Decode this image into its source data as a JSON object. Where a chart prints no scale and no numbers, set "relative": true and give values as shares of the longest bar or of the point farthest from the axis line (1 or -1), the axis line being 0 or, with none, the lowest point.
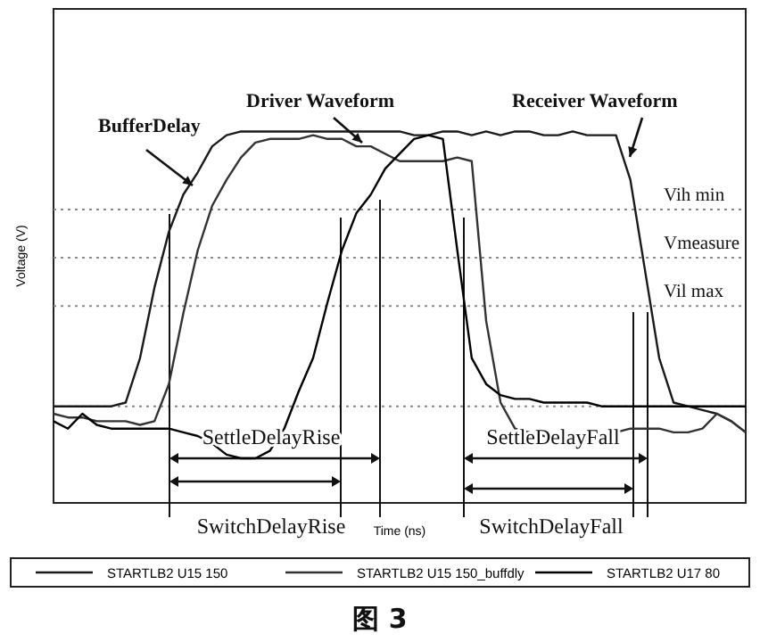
{
  "chart_data": {
    "type": "line",
    "relative": true,
    "xlabel": "Time (ns)",
    "ylabel": "Voltage (V)",
    "categories": [
      null,
      null,
      null,
      null,
      null,
      null,
      null,
      null,
      null,
      null,
      null,
      null,
      null,
      null,
      null,
      null,
      null,
      null,
      null,
      null,
      null,
      null,
      null,
      null,
      null,
      null,
      null,
      null,
      null,
      null,
      null,
      null,
      null,
      null,
      null,
      null,
      null,
      null,
      null,
      null,
      null,
      null,
      null,
      null,
      null,
      null,
      null,
      null,
      null
    ],
    "series": [
      {
        "name": "STARTLB2 U15 150",
        "color": "#1a1a1a",
        "values": [
          0.26,
          0.26,
          0.26,
          0.26,
          0.26,
          0.27,
          0.39,
          0.58,
          0.73,
          0.83,
          0.89,
          0.96,
          0.99,
          1,
          1,
          1,
          1,
          1,
          1,
          1,
          1,
          1,
          1,
          1,
          1,
          0.99,
          0.99,
          1,
          1,
          0.99,
          1,
          0.99,
          1,
          1,
          0.99,
          0.99,
          1,
          0.99,
          0.99,
          0.99,
          0.87,
          0.63,
          0.39,
          0.27,
          0.26,
          0.25,
          0.24,
          0.22,
          0.19
        ]
      },
      {
        "name": "STARTLB2 U15 150_buffdly",
        "color": "#333333",
        "values": [
          0.24,
          0.23,
          0.23,
          0.22,
          0.22,
          0.22,
          0.21,
          0.22,
          0.32,
          0.51,
          0.68,
          0.8,
          0.87,
          0.93,
          0.97,
          0.98,
          0.98,
          0.98,
          0.99,
          0.98,
          0.98,
          0.96,
          0.96,
          0.94,
          0.92,
          0.92,
          0.92,
          0.92,
          0.93,
          0.92,
          0.49,
          0.27,
          0.2,
          0.19,
          0.18,
          0.18,
          0.17,
          0.17,
          0.18,
          0.19,
          0.2,
          0.2,
          0.2,
          0.19,
          0.19,
          0.2,
          0.24,
          0.22,
          0.19
        ]
      },
      {
        "name": "STARTLB2 U17 80",
        "color": "#000000",
        "values": [
          0.22,
          0.2,
          0.24,
          0.21,
          0.2,
          0.2,
          0.2,
          0.2,
          0.2,
          0.19,
          0.18,
          0.16,
          0.13,
          0.12,
          0.12,
          0.14,
          0.2,
          0.3,
          0.39,
          0.54,
          0.68,
          0.78,
          0.83,
          0.9,
          0.94,
          0.98,
          0.99,
          0.98,
          0.68,
          0.39,
          0.32,
          0.29,
          0.28,
          0.28,
          0.27,
          0.27,
          0.27,
          0.27,
          0.26,
          0.26,
          0.26,
          0.26,
          0.26,
          0.26,
          0.26,
          0.26,
          0.26,
          0.26,
          0.26
        ]
      }
    ],
    "ref_lines": [
      {
        "axis": "y",
        "value": 0.79,
        "label": "Vih min",
        "color": "#888888",
        "line_style": "dotted"
      },
      {
        "axis": "y",
        "value": 0.66,
        "label": "Vmeasure",
        "color": "#888888",
        "line_style": "dotted"
      },
      {
        "axis": "y",
        "value": 0.53,
        "label": "Vil max",
        "color": "#888888",
        "line_style": "dotted"
      },
      {
        "axis": "y",
        "value": 0.26,
        "label": null,
        "color": "#888888",
        "line_style": "dotted"
      }
    ],
    "annotations": [
      "BufferDelay",
      "Driver Waveform",
      "Receiver Waveform",
      "SettleDelayRise",
      "SwitchDelayRise",
      "SettleDelayFall",
      "SwitchDelayFall",
      "图 3"
    ],
    "legend": "bottom",
    "line_style": "solid",
    "marker": "none"
  }
}
